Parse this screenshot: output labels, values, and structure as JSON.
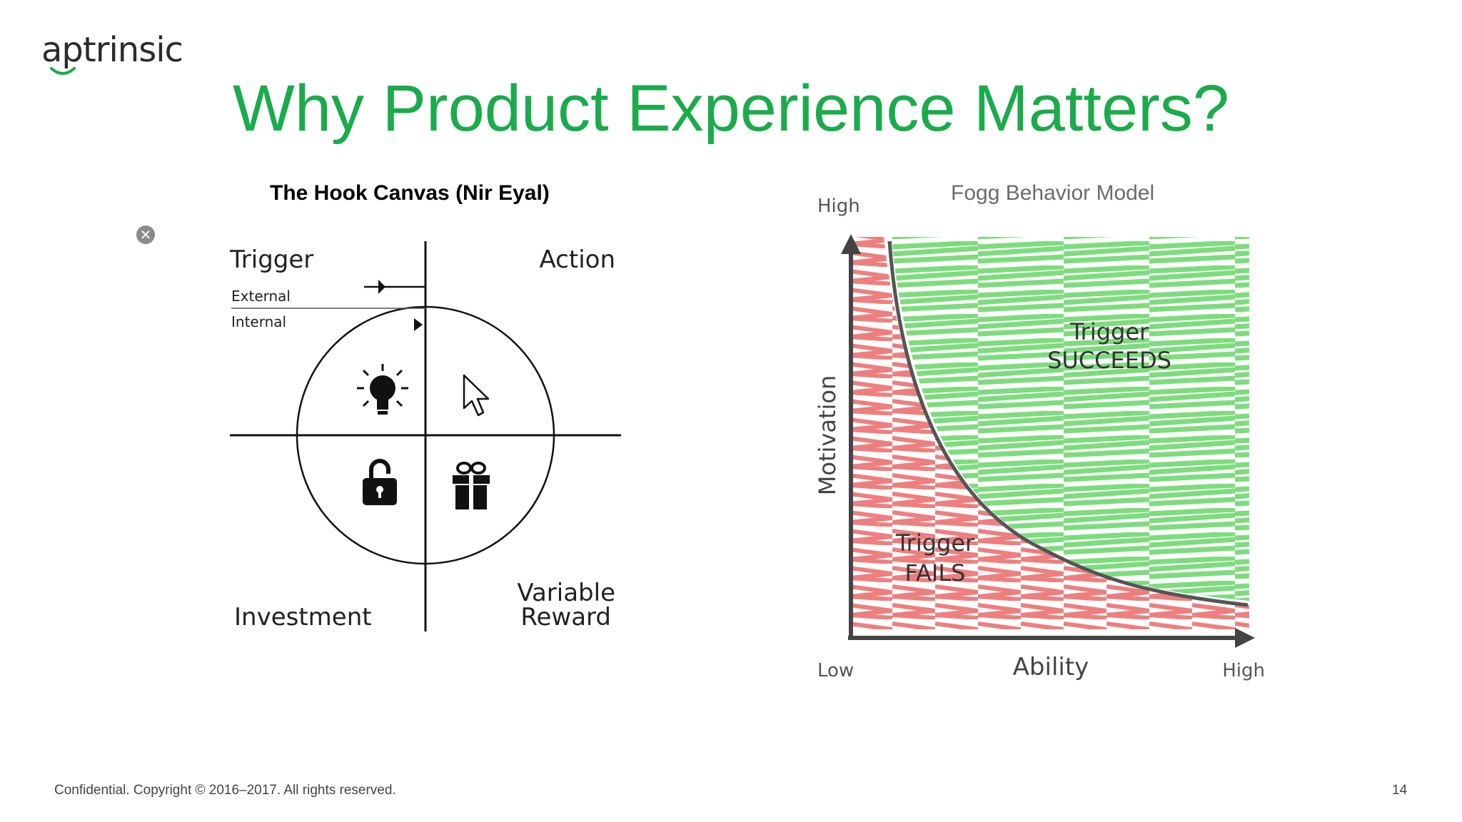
{
  "brand": {
    "name": "aptrinsic"
  },
  "slide": {
    "title": "Why Product Experience Matters?",
    "page_number": "14",
    "footer": "Confidential. Copyright © 2016–2017. All rights reserved."
  },
  "hook_canvas": {
    "title": "The Hook Canvas (Nir Eyal)",
    "trigger": "Trigger",
    "external": "External",
    "internal": "Internal",
    "action": "Action",
    "investment": "Investment",
    "variable_reward_line1": "Variable",
    "variable_reward_line2": "Reward",
    "icons": [
      "lightbulb-icon",
      "cursor-icon",
      "padlock-icon",
      "gift-icon"
    ]
  },
  "fogg": {
    "title": "Fogg Behavior Model",
    "y_high": "High",
    "y_label": "Motivation",
    "x_low": "Low",
    "x_label": "Ability",
    "x_high": "High",
    "succeeds_line1": "Trigger",
    "succeeds_line2": "SUCCEEDS",
    "fails_line1": "Trigger",
    "fails_line2": "FAILS",
    "colors": {
      "success": "#7ddc7d",
      "fail": "#ee7f7f",
      "curve": "#555555"
    }
  },
  "controls": {
    "close_symbol": "✕"
  }
}
